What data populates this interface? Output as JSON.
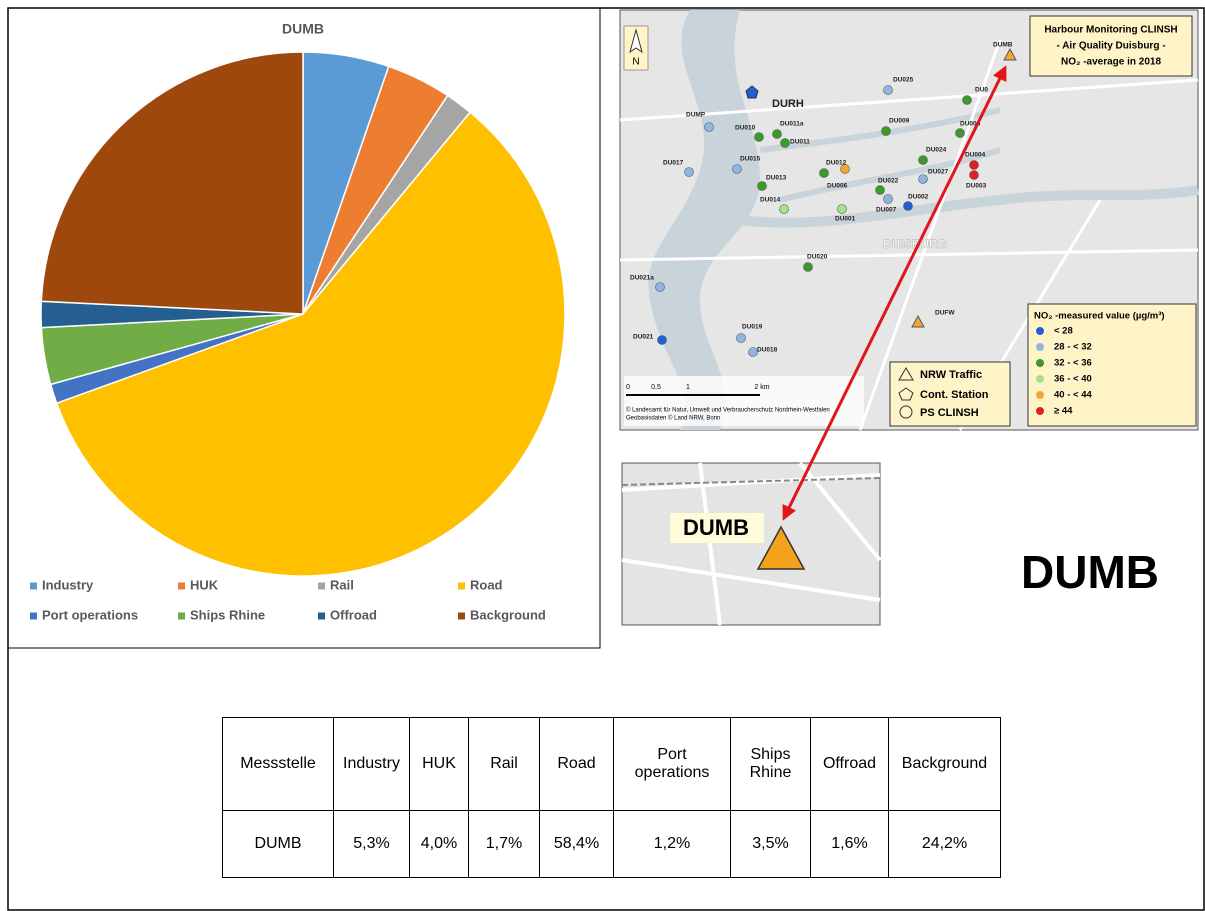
{
  "chart_data": {
    "type": "pie",
    "title": "DUMB",
    "categories": [
      "Industry",
      "HUK",
      "Rail",
      "Road",
      "Port operations",
      "Ships Rhine",
      "Offroad",
      "Background"
    ],
    "values": [
      5.3,
      4.0,
      1.7,
      58.4,
      1.2,
      3.5,
      1.6,
      24.2
    ],
    "colors": [
      "#5b9bd5",
      "#ed7d31",
      "#a5a5a5",
      "#ffc000",
      "#4472c4",
      "#70ad47",
      "#255e91",
      "#9e480e"
    ],
    "legend": "bottom"
  },
  "map": {
    "title": [
      "Harbour Monitoring CLINSH",
      "- Air Quality Duisburg -",
      "NO₂ -average in 2018"
    ],
    "north": "N",
    "city": "DUISBURG",
    "stations": [
      {
        "name": "DUMB",
        "symbol": "triangle",
        "color": "#f4a633"
      },
      {
        "name": "DURH",
        "symbol": "pentagon",
        "color": "#1f5fd6"
      },
      {
        "name": "DU025",
        "symbol": "circle",
        "color": "#8fb5e3"
      },
      {
        "name": "DU0",
        "symbol": "circle",
        "color": "#3a9b2a"
      },
      {
        "name": "DUMP",
        "symbol": "circle",
        "color": "#8fb5e3"
      },
      {
        "name": "DU010",
        "symbol": "circle",
        "color": "#3a9b2a"
      },
      {
        "name": "DU011a",
        "symbol": "circle",
        "color": "#3a9b2a"
      },
      {
        "name": "DU011",
        "symbol": "circle",
        "color": "#3a9b2a"
      },
      {
        "name": "DU009",
        "symbol": "circle",
        "color": "#3a9b2a"
      },
      {
        "name": "DU005",
        "symbol": "circle",
        "color": "#3a9b2a"
      },
      {
        "name": "DU017",
        "symbol": "circle",
        "color": "#8fb5e3"
      },
      {
        "name": "DU015",
        "symbol": "circle",
        "color": "#8fb5e3"
      },
      {
        "name": "DU012",
        "symbol": "circle",
        "color": "#3a9b2a"
      },
      {
        "name": "DU024",
        "symbol": "circle",
        "color": "#3a9b2a"
      },
      {
        "name": "DU004",
        "symbol": "circle",
        "color": "#e02020"
      },
      {
        "name": "DU027",
        "symbol": "circle",
        "color": "#8fb5e3"
      },
      {
        "name": "DU003",
        "symbol": "circle",
        "color": "#e02020"
      },
      {
        "name": "DU013",
        "symbol": "circle",
        "color": "#3a9b2a"
      },
      {
        "name": "DU006",
        "symbol": "circle",
        "color": "#f4a633"
      },
      {
        "name": "DU022",
        "symbol": "circle",
        "color": "#3a9b2a"
      },
      {
        "name": "DU014",
        "symbol": "circle",
        "color": "#a6e08a"
      },
      {
        "name": "DU001",
        "symbol": "circle",
        "color": "#a6e08a"
      },
      {
        "name": "DU007",
        "symbol": "circle",
        "color": "#8fb5e3"
      },
      {
        "name": "DU002",
        "symbol": "circle",
        "color": "#1f5fd6"
      },
      {
        "name": "DU020",
        "symbol": "circle",
        "color": "#3a9b2a"
      },
      {
        "name": "DU021a",
        "symbol": "circle",
        "color": "#8fb5e3"
      },
      {
        "name": "DUFW",
        "symbol": "triangle",
        "color": "#f4a633"
      },
      {
        "name": "DU021",
        "symbol": "circle",
        "color": "#1f5fd6"
      },
      {
        "name": "DU019",
        "symbol": "circle",
        "color": "#8fb5e3"
      },
      {
        "name": "DU018",
        "symbol": "circle",
        "color": "#8fb5e3"
      }
    ],
    "scale": [
      "0",
      "0,5",
      "1",
      "2 km"
    ],
    "copyright": [
      "© Landesamt für Natur, Umwelt und Verbraucherschutz Nordrhein-Westfalen",
      "Geobasisdaten © Land NRW, Bonn"
    ],
    "symbols": [
      "NRW Traffic",
      "Cont. Station",
      "PS CLINSH"
    ],
    "legend_title": "NO₂ -measured value (µg/m³)",
    "legend_items": [
      {
        "label": "< 28",
        "color": "#1f5fd6"
      },
      {
        "label": "28 - < 32",
        "color": "#8fb5e3"
      },
      {
        "label": "32 - < 36",
        "color": "#3a9b2a"
      },
      {
        "label": "36 - < 40",
        "color": "#a6e08a"
      },
      {
        "label": "40 - < 44",
        "color": "#f4a633"
      },
      {
        "label": "≥ 44",
        "color": "#e02020"
      }
    ],
    "inset_label": "DUMB"
  },
  "site_label": "DUMB",
  "table": {
    "header": [
      "Messstelle",
      "Industry",
      "HUK",
      "Rail",
      "Road",
      "Port operations",
      "Ships Rhine",
      "Offroad",
      "Background"
    ],
    "rows": [
      [
        "DUMB",
        "5,3%",
        "4,0%",
        "1,7%",
        "58,4%",
        "1,2%",
        "3,5%",
        "1,6%",
        "24,2%"
      ]
    ]
  }
}
